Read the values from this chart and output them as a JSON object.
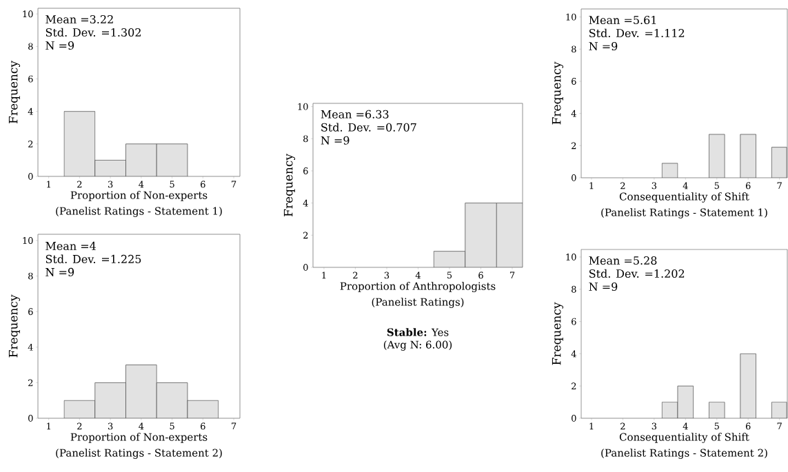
{
  "chart_data": [
    {
      "type": "histogram",
      "xlabel": "Proportion of Non-experts",
      "ylabel": "Frequency",
      "bins": [
        1.5,
        2.5,
        3.5,
        4.5,
        5.5
      ],
      "values": [
        4,
        1,
        2,
        2
      ],
      "color": "#e2e2e2",
      "xlim": [
        0.65,
        7.2
      ],
      "ylim": [
        0,
        10.35
      ],
      "xticks": [
        1,
        2,
        3,
        4,
        5,
        6,
        7
      ],
      "yticks": [
        0,
        2,
        4,
        6,
        8,
        10
      ],
      "grid": false,
      "annotations": [
        "Mean =3.22",
        "Std. Dev. =1.302",
        "N =9",
        "(Panelist Ratings - Statement 1)"
      ]
    },
    {
      "type": "histogram",
      "xlabel": "Proportion of Non-experts",
      "ylabel": "Frequency",
      "bins": [
        1.5,
        2.5,
        3.5,
        4.5,
        5.5,
        6.5
      ],
      "values": [
        1,
        2,
        3,
        2,
        1
      ],
      "color": "#e2e2e2",
      "xlim": [
        0.65,
        7.2
      ],
      "ylim": [
        0,
        10.35
      ],
      "xticks": [
        1,
        2,
        3,
        4,
        5,
        6,
        7
      ],
      "yticks": [
        0,
        2,
        4,
        6,
        8,
        10
      ],
      "grid": false,
      "annotations": [
        "Mean =4",
        "Std. Dev. =1.225",
        "N =9",
        "(Panelist Ratings - Statement 2)"
      ]
    },
    {
      "type": "histogram",
      "xlabel": "Proportion of Anthropologists",
      "ylabel": "Frequency",
      "bins": [
        4.5,
        5.5,
        6.5,
        7.33
      ],
      "values": [
        1,
        4,
        4
      ],
      "color": "#e2e2e2",
      "xlim": [
        0.65,
        7.33
      ],
      "ylim": [
        0,
        10.2
      ],
      "xticks": [
        1,
        2,
        3,
        4,
        5,
        6,
        7
      ],
      "yticks": [
        0,
        2,
        4,
        6,
        8,
        10
      ],
      "grid": false,
      "annotations": [
        "Mean =6.33",
        "Std. Dev. =0.707",
        "N =9",
        "(Panelist Ratings)",
        "**Stable:** Yes",
        "(Avg N: 6.00)"
      ]
    },
    {
      "type": "histogram",
      "xlabel": "Consequentiality of Shift",
      "ylabel": "Frequency",
      "bins": [
        3.25,
        3.75,
        4.75,
        5.25,
        5.75,
        6.25,
        6.75,
        7.23
      ],
      "values": [
        0.9,
        0,
        2.7,
        0,
        2.7,
        0,
        1.9
      ],
      "color": "#e2e2e2",
      "xlim": [
        0.67,
        7.25
      ],
      "ylim": [
        0,
        10.5
      ],
      "xticks": [
        1,
        2,
        3,
        4,
        5,
        6,
        7
      ],
      "yticks": [
        0,
        2,
        4,
        6,
        8,
        10
      ],
      "grid": false,
      "annotations": [
        "Mean =5.61",
        "Std. Dev. =1.112",
        "N =9",
        "(Panelist Ratings - Statement 1)"
      ]
    },
    {
      "type": "histogram",
      "xlabel": "Consequentiality of Shift",
      "ylabel": "Frequency",
      "bins": [
        3.25,
        3.75,
        4.25,
        4.75,
        5.25,
        5.75,
        6.25,
        6.75,
        7.23
      ],
      "values": [
        1,
        2,
        0,
        1,
        0,
        4,
        0,
        1
      ],
      "color": "#e2e2e2",
      "xlim": [
        0.67,
        7.25
      ],
      "ylim": [
        0,
        10.47
      ],
      "xticks": [
        1,
        2,
        3,
        4,
        5,
        6,
        7
      ],
      "yticks": [
        0,
        2,
        4,
        6,
        8,
        10
      ],
      "grid": false,
      "annotations": [
        "Mean =5.28",
        "Std. Dev. =1.202",
        "N =9",
        "(Panelist Ratings - Statement 2)"
      ]
    }
  ]
}
